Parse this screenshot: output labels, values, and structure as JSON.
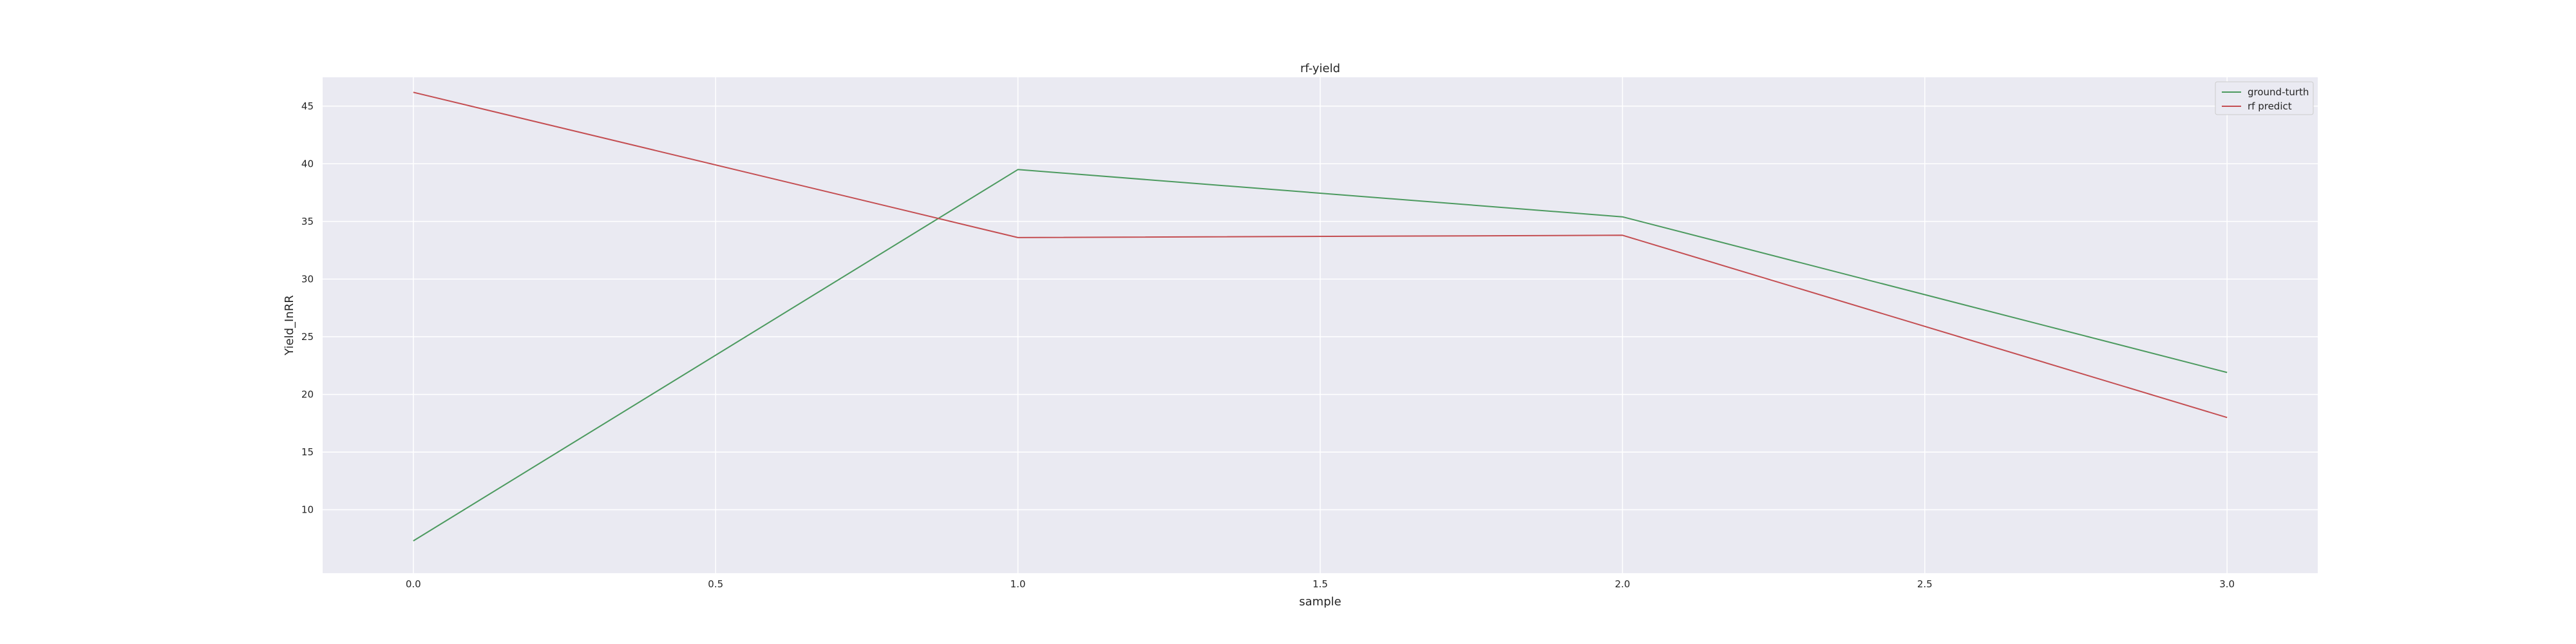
{
  "chart_data": {
    "type": "line",
    "title": "rf-yield",
    "xlabel": "sample",
    "ylabel": "Yield_InRR",
    "xlim": [
      -0.15,
      3.15
    ],
    "ylim": [
      4.5,
      47.5
    ],
    "xticks": [
      "0.0",
      "0.5",
      "1.0",
      "1.5",
      "2.0",
      "2.5",
      "3.0"
    ],
    "yticks": [
      "10",
      "15",
      "20",
      "25",
      "30",
      "35",
      "40",
      "45"
    ],
    "grid": true,
    "legend_position": "top-right",
    "x": [
      0,
      1,
      2,
      3
    ],
    "series": [
      {
        "name": "ground-turth",
        "color": "#4c9a5f",
        "values": [
          7.3,
          39.5,
          35.4,
          21.9
        ]
      },
      {
        "name": "rf predict",
        "color": "#c44e52",
        "values": [
          46.2,
          33.6,
          33.8,
          18.0
        ]
      }
    ]
  }
}
